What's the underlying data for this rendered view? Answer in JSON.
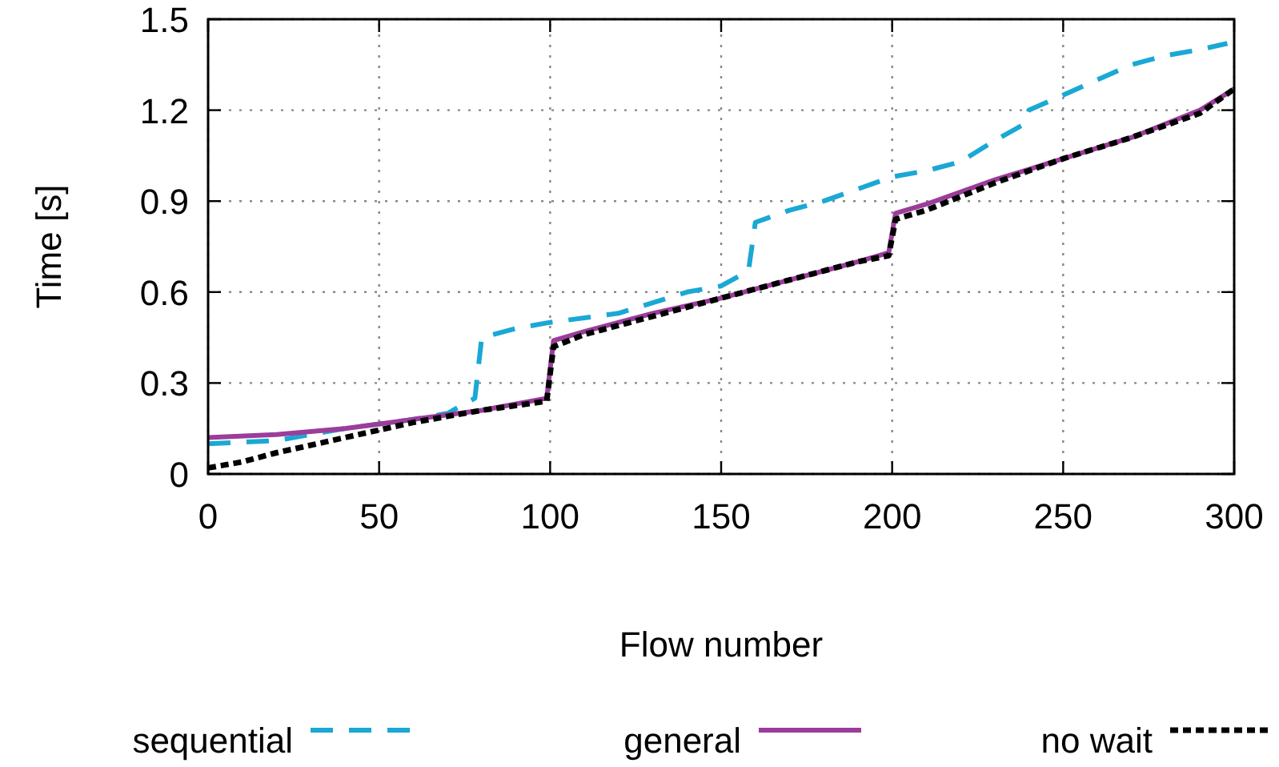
{
  "chart_data": {
    "type": "line",
    "xlabel": "Flow number",
    "ylabel": "Time [s]",
    "xlim": [
      0,
      300
    ],
    "xticks": [
      0,
      50,
      100,
      150,
      200,
      250,
      300
    ],
    "ylim": [
      0,
      1.5
    ],
    "yticks": [
      0,
      0.3,
      0.6,
      0.9,
      1.2,
      1.5
    ],
    "grid": true,
    "legend": "bottom",
    "series": [
      {
        "name": "sequential",
        "color": "#1aa8d4",
        "line_style": "dashed",
        "x": [
          0,
          20,
          40,
          60,
          70,
          78,
          80,
          90,
          100,
          120,
          140,
          150,
          158,
          160,
          170,
          180,
          190,
          200,
          210,
          220,
          230,
          238,
          240,
          250,
          260,
          270,
          280,
          290,
          298
        ],
        "values": [
          0.1,
          0.11,
          0.15,
          0.18,
          0.2,
          0.25,
          0.45,
          0.48,
          0.5,
          0.53,
          0.6,
          0.62,
          0.67,
          0.83,
          0.87,
          0.9,
          0.94,
          0.98,
          1.0,
          1.03,
          1.1,
          1.15,
          1.2,
          1.25,
          1.3,
          1.35,
          1.38,
          1.4,
          1.42
        ]
      },
      {
        "name": "general",
        "color": "#9b3d9b",
        "line_style": "solid",
        "x": [
          0,
          20,
          40,
          60,
          80,
          99,
          101,
          110,
          130,
          150,
          170,
          190,
          199,
          201,
          210,
          230,
          250,
          270,
          290,
          300
        ],
        "values": [
          0.12,
          0.13,
          0.15,
          0.18,
          0.21,
          0.25,
          0.44,
          0.47,
          0.53,
          0.58,
          0.64,
          0.7,
          0.73,
          0.86,
          0.89,
          0.97,
          1.04,
          1.11,
          1.2,
          1.27
        ]
      },
      {
        "name": "no wait",
        "color": "#000000",
        "line_style": "dotted",
        "x": [
          0,
          10,
          20,
          40,
          60,
          80,
          99,
          101,
          110,
          130,
          150,
          170,
          190,
          199,
          201,
          210,
          230,
          250,
          270,
          290,
          300
        ],
        "values": [
          0.02,
          0.04,
          0.07,
          0.12,
          0.17,
          0.21,
          0.24,
          0.42,
          0.46,
          0.52,
          0.58,
          0.64,
          0.7,
          0.72,
          0.84,
          0.87,
          0.96,
          1.04,
          1.11,
          1.19,
          1.27
        ]
      }
    ]
  }
}
